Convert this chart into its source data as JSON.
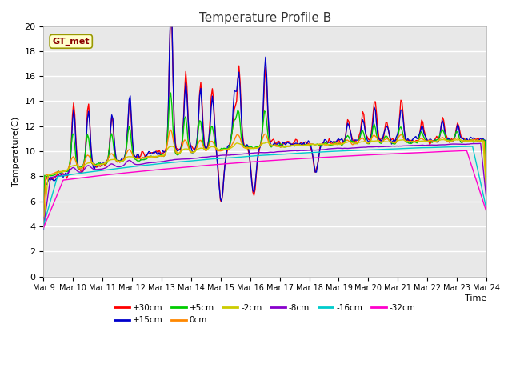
{
  "title": "Temperature Profile B",
  "xlabel": "Time",
  "ylabel": "Temperature(C)",
  "ylim": [
    0,
    20
  ],
  "yticks": [
    0,
    2,
    4,
    6,
    8,
    10,
    12,
    14,
    16,
    18,
    20
  ],
  "background_color": "#e8e8e8",
  "series": [
    {
      "label": "+30cm",
      "color": "#ff0000",
      "lw": 1.0
    },
    {
      "label": "+15cm",
      "color": "#0000cc",
      "lw": 1.0
    },
    {
      "label": "+5cm",
      "color": "#00cc00",
      "lw": 1.0
    },
    {
      "label": "0cm",
      "color": "#ff8800",
      "lw": 1.0
    },
    {
      "label": "-2cm",
      "color": "#cccc00",
      "lw": 1.0
    },
    {
      "label": "-8cm",
      "color": "#8800cc",
      "lw": 1.0
    },
    {
      "label": "-16cm",
      "color": "#00cccc",
      "lw": 1.0
    },
    {
      "label": "-32cm",
      "color": "#ff00cc",
      "lw": 1.0
    }
  ],
  "xtick_labels": [
    "Mar 9",
    "Mar 10",
    "Mar 11",
    "Mar 12",
    "Mar 13",
    "Mar 14",
    "Mar 15",
    "Mar 16",
    "Mar 17",
    "Mar 18",
    "Mar 19",
    "Mar 20",
    "Mar 21",
    "Mar 22",
    "Mar 23",
    "Mar 24"
  ],
  "annotation": "GT_met",
  "figsize": [
    6.4,
    4.8
  ],
  "dpi": 100
}
